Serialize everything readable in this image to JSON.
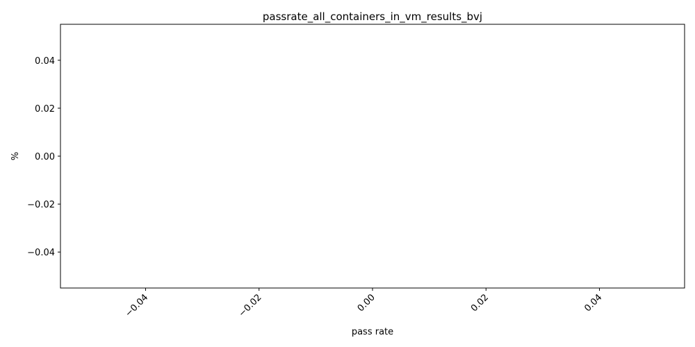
{
  "chart_data": {
    "type": "line",
    "title": "passrate_all_containers_in_vm_results_bvj",
    "xlabel": "pass rate",
    "ylabel": "%",
    "xlim": [
      -0.055,
      0.055
    ],
    "ylim": [
      -0.055,
      0.055
    ],
    "x_ticks": [
      "−0.04",
      "−0.02",
      "0.00",
      "0.02",
      "0.04"
    ],
    "x_tick_values": [
      -0.04,
      -0.02,
      0.0,
      0.02,
      0.04
    ],
    "y_ticks": [
      "−0.04",
      "−0.02",
      "0.00",
      "0.02",
      "0.04"
    ],
    "y_tick_values": [
      -0.04,
      -0.02,
      0.0,
      0.02,
      0.04
    ],
    "x_tick_rotation_deg": 45,
    "grid": false,
    "legend": "none",
    "series": []
  }
}
